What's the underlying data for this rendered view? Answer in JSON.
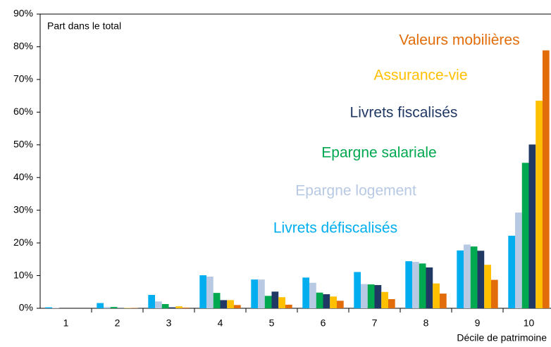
{
  "chart_data": {
    "type": "bar",
    "y_axis_label": "Part dans le total",
    "x_axis_label": "Décile de patrimoine",
    "categories": [
      "1",
      "2",
      "3",
      "4",
      "5",
      "6",
      "7",
      "8",
      "9",
      "10"
    ],
    "series": [
      {
        "name": "Livrets défiscalisés",
        "color": "#00aeef",
        "values": [
          0.3,
          1.6,
          4.1,
          10.1,
          8.8,
          9.4,
          11.1,
          14.4,
          17.7,
          22.2
        ]
      },
      {
        "name": "Epargne logement",
        "color": "#b8c9e3",
        "values": [
          0.1,
          0.4,
          2.1,
          9.7,
          8.8,
          7.8,
          7.4,
          14.2,
          19.5,
          29.3
        ]
      },
      {
        "name": "Epargne salariale",
        "color": "#00a84f",
        "values": [
          0.0,
          0.4,
          1.3,
          4.7,
          3.8,
          4.8,
          7.3,
          13.7,
          18.9,
          44.5
        ]
      },
      {
        "name": "Livrets fiscalisés",
        "color": "#1f3864",
        "values": [
          0.0,
          0.1,
          0.3,
          2.5,
          5.1,
          4.3,
          7.1,
          12.5,
          17.6,
          50.1
        ]
      },
      {
        "name": "Assurance-vie",
        "color": "#ffc000",
        "values": [
          0.0,
          0.1,
          0.6,
          2.5,
          3.4,
          3.6,
          5.0,
          7.6,
          13.3,
          63.5
        ]
      },
      {
        "name": "Valeurs mobilières",
        "color": "#e36c0a",
        "values": [
          0.0,
          0.1,
          0.2,
          1.0,
          1.1,
          2.3,
          2.8,
          4.5,
          8.7,
          78.9
        ]
      }
    ],
    "ylim": [
      0,
      90
    ],
    "yticks": [
      {
        "value": 0,
        "label": "0%"
      },
      {
        "value": 10,
        "label": "10%"
      },
      {
        "value": 20,
        "label": "20%"
      },
      {
        "value": 30,
        "label": "30%"
      },
      {
        "value": 40,
        "label": "40%"
      },
      {
        "value": 50,
        "label": "50%"
      },
      {
        "value": 60,
        "label": "60%"
      },
      {
        "value": 70,
        "label": "70%"
      },
      {
        "value": 80,
        "label": "80%"
      },
      {
        "value": 90,
        "label": "90%"
      }
    ],
    "grid": false
  }
}
